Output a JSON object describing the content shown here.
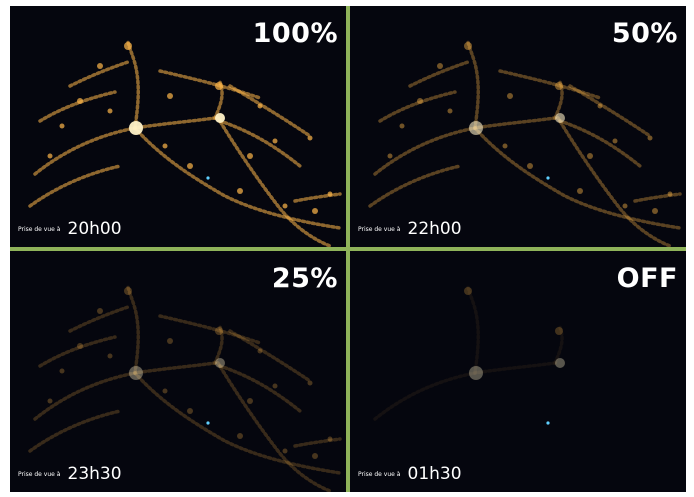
{
  "panels": [
    {
      "level": "100%",
      "caption_prefix": "Prise de vue à",
      "time": "20h00",
      "brightness": 1.0
    },
    {
      "level": "50%",
      "caption_prefix": "Prise de vue à",
      "time": "22h00",
      "brightness": 0.62
    },
    {
      "level": "25%",
      "caption_prefix": "Prise de vue à",
      "time": "23h30",
      "brightness": 0.38
    },
    {
      "level": "OFF",
      "caption_prefix": "Prise de vue à",
      "time": "01h30",
      "brightness": 0.12
    }
  ],
  "colors": {
    "divider": "#8fb35a",
    "night_sky": "#05060e",
    "light": "#ffb84a",
    "core": "#fff2c8"
  }
}
